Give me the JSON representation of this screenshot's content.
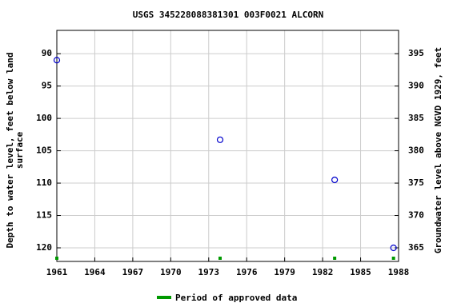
{
  "chart_data": {
    "type": "scatter",
    "title": "USGS 345228088381301 003F0021  ALCORN",
    "ylabel": [
      "Depth to water level, feet below land",
      "surface"
    ],
    "y2label": "Groundwater level above NGVD 1929, feet",
    "xlim": [
      1961,
      1988
    ],
    "xticks": [
      1961,
      1964,
      1967,
      1970,
      1973,
      1976,
      1979,
      1982,
      1985,
      1988
    ],
    "ylim": [
      86.4,
      122.1
    ],
    "yticks": [
      90,
      95,
      100,
      105,
      110,
      115,
      120
    ],
    "y2lim": [
      398.6,
      362.9
    ],
    "y2ticks": [
      365,
      370,
      375,
      380,
      385,
      390,
      395
    ],
    "inverted_y": true,
    "grid": true,
    "series": [
      {
        "color": "#0000cc",
        "x": [
          1961.0,
          1973.9,
          1982.95,
          1987.6
        ],
        "values": [
          91.0,
          103.3,
          109.5,
          120.0
        ]
      },
      {
        "name": "Period of approved data",
        "color": "#009900",
        "x": [
          1961.0,
          1973.9,
          1982.95,
          1987.6
        ]
      }
    ]
  }
}
